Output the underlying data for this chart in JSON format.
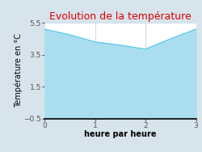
{
  "title": "Evolution de la température",
  "xlabel": "heure par heure",
  "ylabel": "Température en °C",
  "x": [
    0,
    0.5,
    1.0,
    1.5,
    2.0,
    2.5,
    3.0
  ],
  "y": [
    5.1,
    4.75,
    4.3,
    4.1,
    3.85,
    4.5,
    5.1
  ],
  "xlim": [
    0,
    3
  ],
  "ylim": [
    -0.5,
    5.5
  ],
  "xticks": [
    0,
    1,
    2,
    3
  ],
  "yticks": [
    -0.5,
    1.5,
    3.5,
    5.5
  ],
  "line_color": "#66ccee",
  "fill_color": "#aadeee",
  "title_color": "#dd0000",
  "bg_color": "#d8e4ec",
  "plot_bg_color": "#ffffff",
  "grid_color": "#ccddee",
  "tick_color": "#555555",
  "label_color": "#000000",
  "bottom_spine_color": "#000000",
  "title_fontsize": 9,
  "label_fontsize": 7,
  "tick_fontsize": 6.5
}
